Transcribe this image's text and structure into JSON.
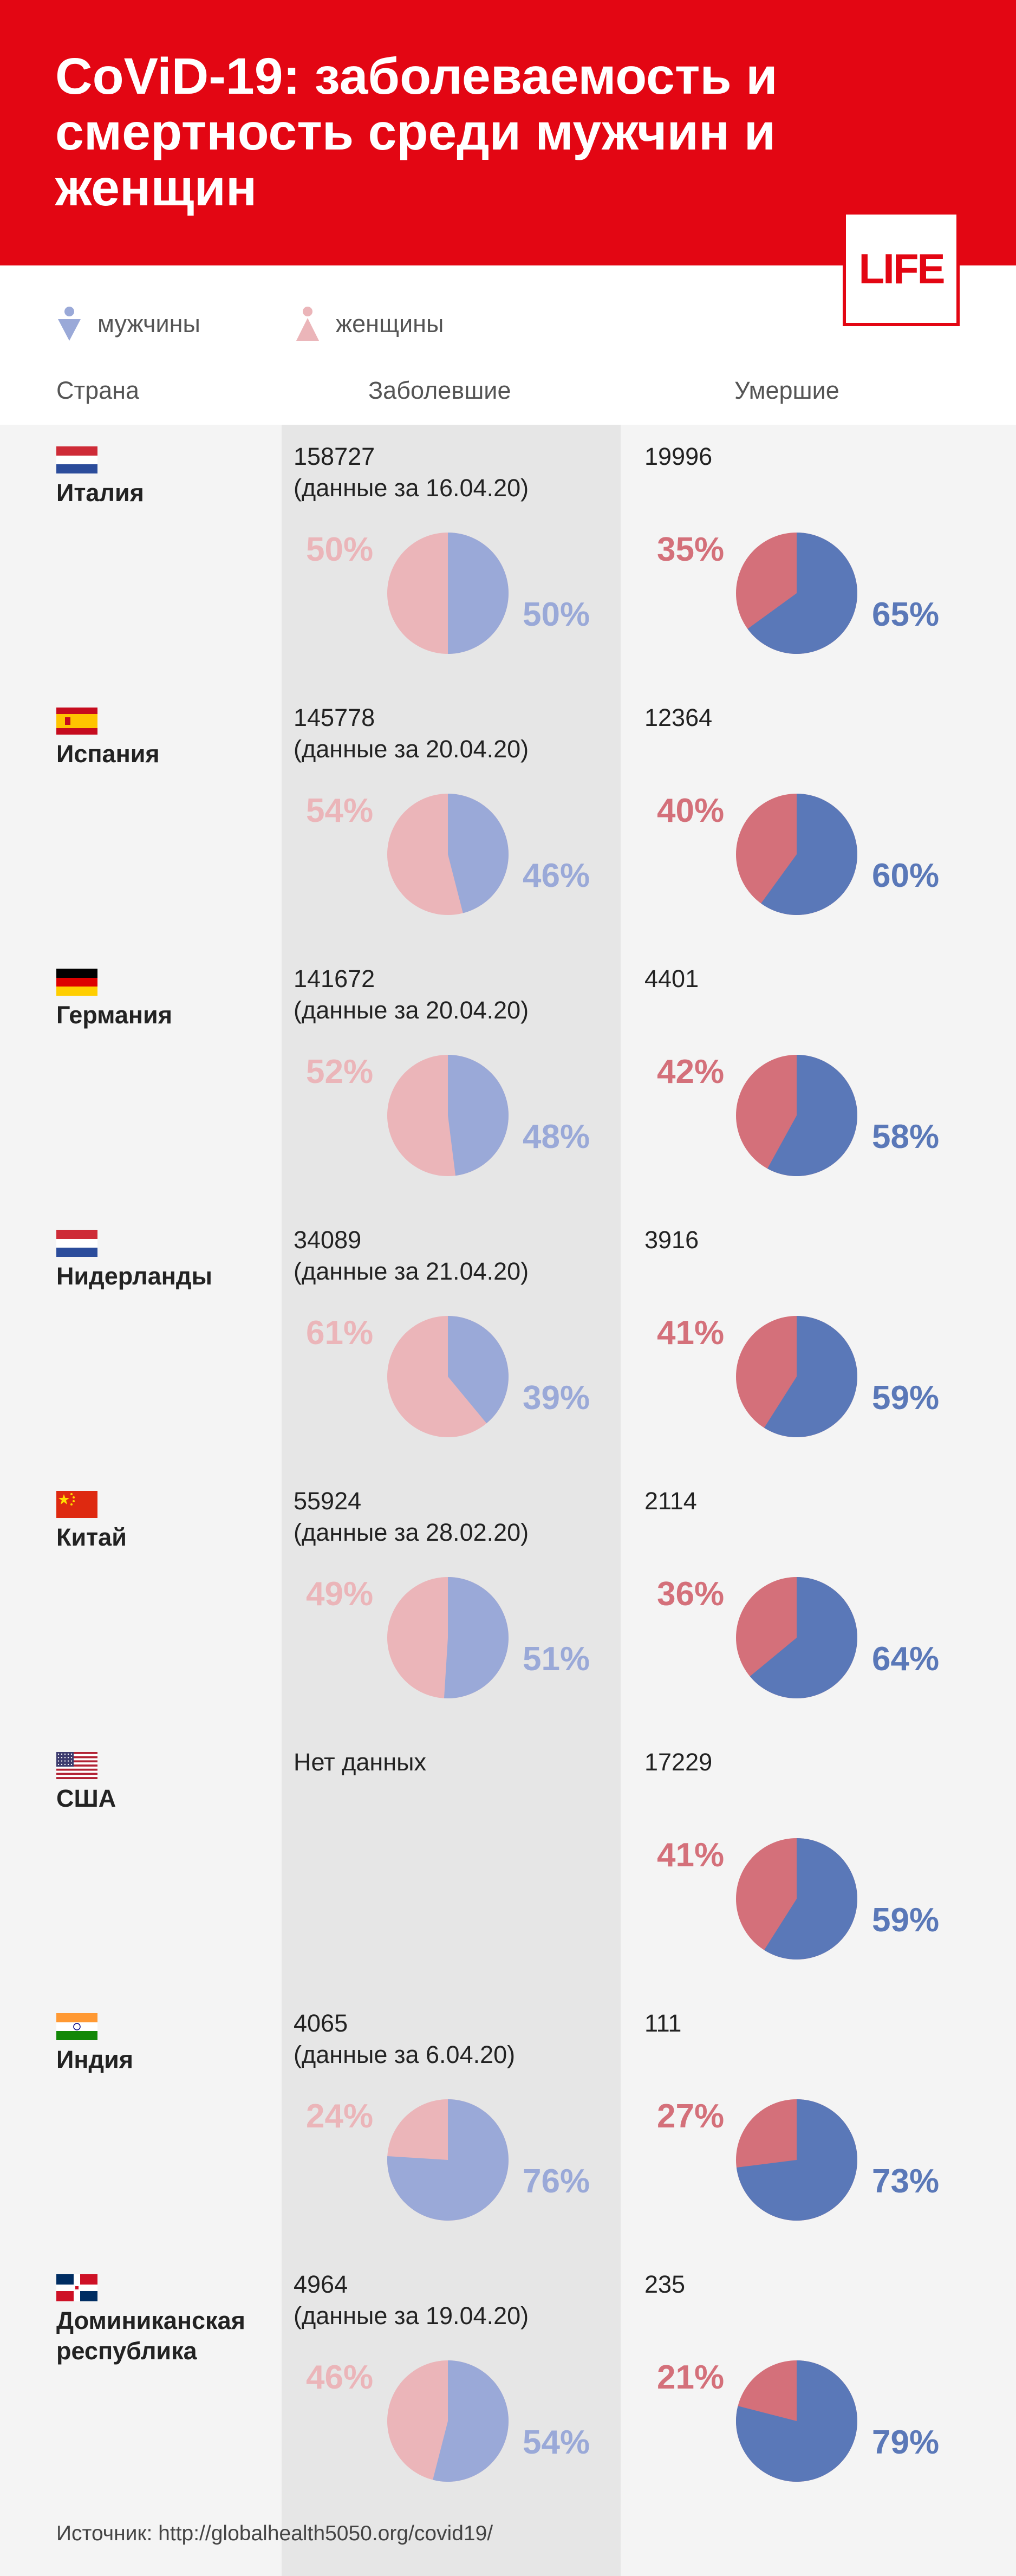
{
  "title": "CoViD-19: заболеваемость и смертность среди мужчин и женщин",
  "logo_text": "LIFE",
  "legend": {
    "men": "мужчины",
    "women": "женщины"
  },
  "columns": {
    "country": "Страна",
    "cases": "Заболевшие",
    "deaths": "Умершие"
  },
  "colors": {
    "header_red": "#e30613",
    "cases_men": "#9aa9d8",
    "cases_women": "#ebb5b9",
    "deaths_men": "#5a78b8",
    "deaths_women": "#d4707a"
  },
  "chart_data": {
    "type": "pie",
    "categories": [
      "Италия",
      "Испания",
      "Германия",
      "Нидерланды",
      "Китай",
      "США",
      "Индия",
      "Доминиканская республика"
    ],
    "rows": [
      {
        "country": "Италия",
        "flag": "italy-flag",
        "cases": "158727",
        "cases_note": "(данные за 16.04.20)",
        "cases_women": 50,
        "cases_men": 50,
        "deaths": "19996",
        "deaths_women": 35,
        "deaths_men": 65
      },
      {
        "country": "Испания",
        "flag": "spain-flag",
        "cases": "145778",
        "cases_note": "(данные за 20.04.20)",
        "cases_women": 54,
        "cases_men": 46,
        "deaths": "12364",
        "deaths_women": 40,
        "deaths_men": 60
      },
      {
        "country": "Германия",
        "flag": "germany-flag",
        "cases": "141672",
        "cases_note": "(данные за 20.04.20)",
        "cases_women": 52,
        "cases_men": 48,
        "deaths": "4401",
        "deaths_women": 42,
        "deaths_men": 58
      },
      {
        "country": "Нидерланды",
        "flag": "netherlands-flag",
        "cases": "34089",
        "cases_note": "(данные за 21.04.20)",
        "cases_women": 61,
        "cases_men": 39,
        "deaths": "3916",
        "deaths_women": 41,
        "deaths_men": 59
      },
      {
        "country": "Китай",
        "flag": "china-flag",
        "cases": "55924",
        "cases_note": "(данные за 28.02.20)",
        "cases_women": 49,
        "cases_men": 51,
        "deaths": "2114",
        "deaths_women": 36,
        "deaths_men": 64
      },
      {
        "country": "США",
        "flag": "usa-flag",
        "cases": "Нет данных",
        "cases_note": "",
        "cases_women": null,
        "cases_men": null,
        "deaths": "17229",
        "deaths_women": 41,
        "deaths_men": 59
      },
      {
        "country": "Индия",
        "flag": "india-flag",
        "cases": "4065",
        "cases_note": "(данные за 6.04.20)",
        "cases_women": 24,
        "cases_men": 76,
        "deaths": "111",
        "deaths_women": 27,
        "deaths_men": 73
      },
      {
        "country": "Доминиканская республика",
        "flag": "dominican-republic-flag",
        "cases": "4964",
        "cases_note": "(данные за 19.04.20)",
        "cases_women": 46,
        "cases_men": 54,
        "deaths": "235",
        "deaths_women": 21,
        "deaths_men": 79
      }
    ]
  },
  "source": "Источник:  http://globalhealth5050.org/covid19/"
}
